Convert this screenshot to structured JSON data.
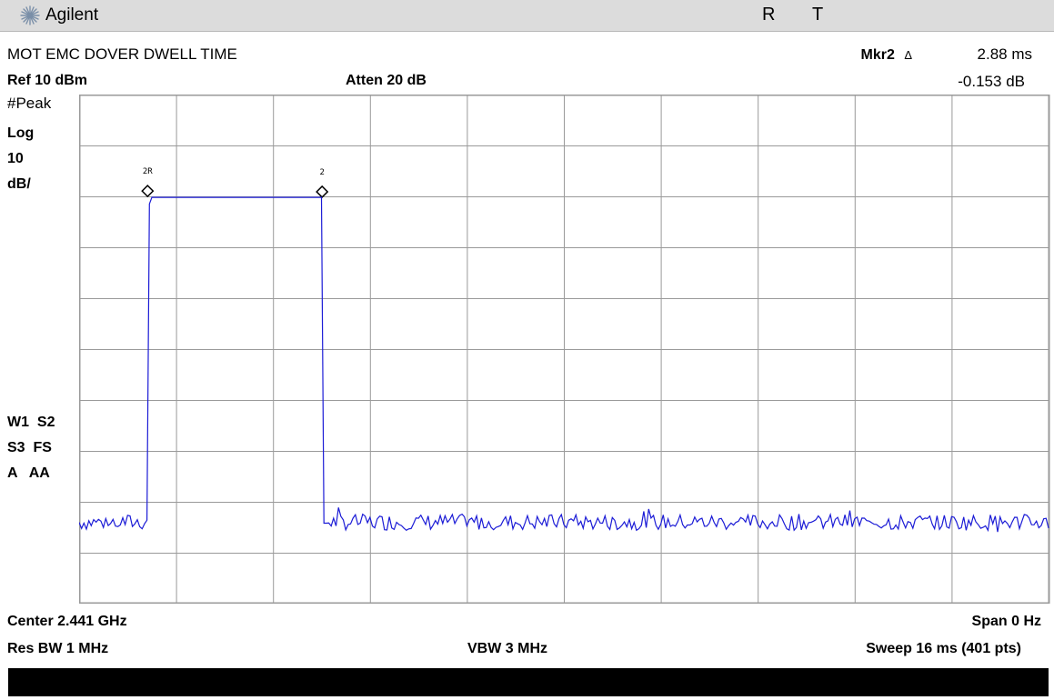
{
  "window": {
    "brand": "Agilent",
    "status_flags": [
      "R",
      "T"
    ]
  },
  "header": {
    "screen_title": "MOT EMC DOVER DWELL TIME",
    "marker_label": "Mkr2",
    "marker_delta_symbol": "Δ",
    "marker_time": "2.88 ms",
    "marker_amplitude": "-0.153 dB",
    "ref_level": "Ref 10 dBm",
    "attenuation": "Atten 20 dB"
  },
  "left_panel": {
    "detector": "#Peak",
    "scale_type": "Log",
    "scale_value": "10",
    "scale_unit": "dB/",
    "trace_line1": "W1  S2",
    "trace_line2": "S3  FS",
    "trace_line3": "A   AA"
  },
  "footer": {
    "center": "Center 2.441 GHz",
    "span": "Span 0 Hz",
    "res_bw": "Res BW 1 MHz",
    "vbw": "VBW 3 MHz",
    "sweep": "Sweep 16 ms (401 pts)"
  },
  "colors": {
    "trace": "#1b1bd6",
    "graticule": "#9a9a9a",
    "status_bar": "#000000",
    "titlebar": "#dcdcdc"
  },
  "chart_data": {
    "type": "line",
    "x_unit": "ms",
    "xlim": [
      0,
      16
    ],
    "y_unit": "dBm",
    "ylim": [
      -90,
      10
    ],
    "grid": true,
    "grid_divisions": {
      "x": 10,
      "y": 10
    },
    "noise_floor_dbm": -74,
    "pulse": {
      "start_ms": 1.13,
      "end_ms": 4.01,
      "level_dbm": -10.2
    },
    "markers": [
      {
        "label": "2R",
        "x_ms": 1.13,
        "y_dbm": -10.2
      },
      {
        "label": "2",
        "x_ms": 4.01,
        "y_dbm": -10.35
      }
    ],
    "sweep_points": 401
  }
}
